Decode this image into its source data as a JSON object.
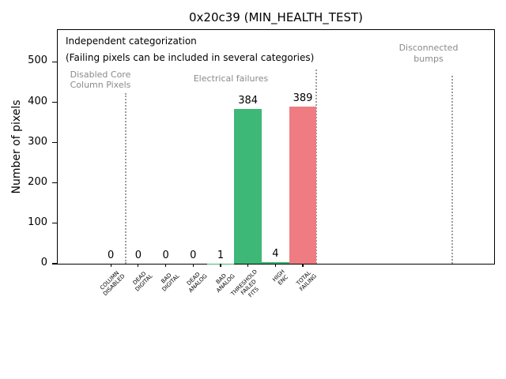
{
  "chart_data": {
    "type": "bar",
    "title": "0x20c39 (MIN_HEALTH_TEST)",
    "ylabel": "Number of pixels",
    "xlabel": "",
    "ylim": [
      0,
      579
    ],
    "yticks": [
      0,
      100,
      200,
      300,
      400,
      500
    ],
    "grid": false,
    "legend": "none",
    "categories": [
      "COLUMN\nDISABLED",
      "DEAD\nDIGITAL",
      "BAD\nDIGITAL",
      "DEAD\nANALOG",
      "BAD\nANALOG",
      "THRESHOLD\nFAILED\nFITS",
      "HIGH\nENC",
      "TOTAL\nFAILING"
    ],
    "values": [
      0,
      0,
      0,
      0,
      1,
      384,
      4,
      389
    ],
    "bar_colors": [
      "#3db876",
      "#3db876",
      "#3db876",
      "#3db876",
      "#3db876",
      "#3db876",
      "#3db876",
      "#ee7c82"
    ],
    "annotations": {
      "note": "Independent categorization\n(Failing pixels can be included in several categories)",
      "regions": [
        {
          "label": "Disabled Core\nColumn Pixels"
        },
        {
          "label": "Electrical failures"
        },
        {
          "label": "Disconnected\nbumps"
        }
      ]
    },
    "colors": {
      "bar_green": "#3db876",
      "bar_red": "#ee7c82",
      "region_text": "#8a8a8a",
      "divider": "#9e9e9e"
    }
  }
}
